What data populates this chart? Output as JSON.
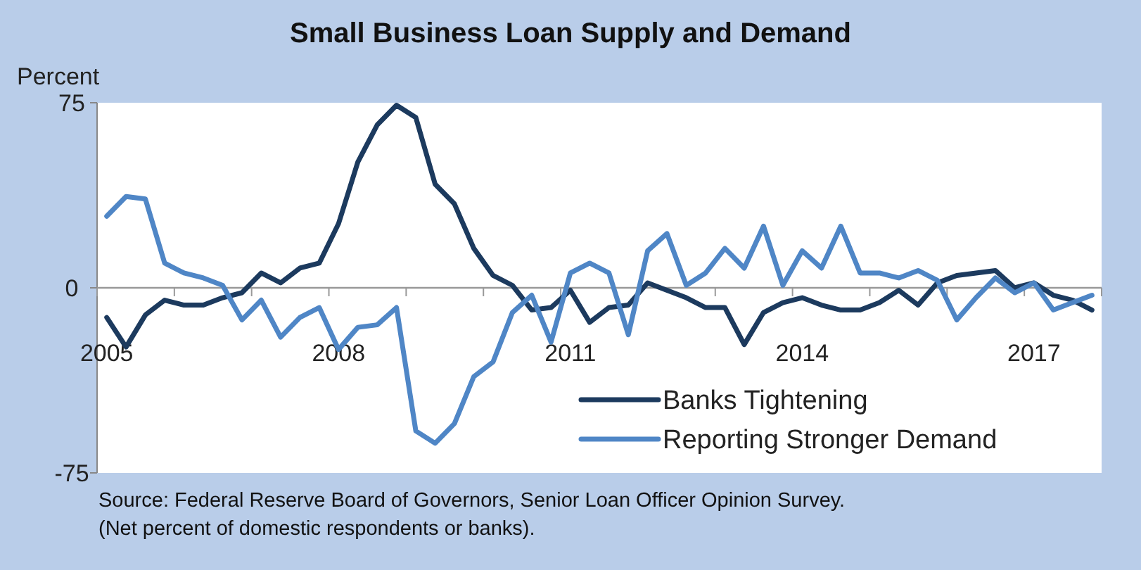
{
  "chart_data": {
    "type": "line",
    "title": "Small Business Loan Supply and Demand",
    "ylabel": "Percent",
    "x": [
      2005,
      2005.25,
      2005.5,
      2005.75,
      2006,
      2006.25,
      2006.5,
      2006.75,
      2007,
      2007.25,
      2007.5,
      2007.75,
      2008,
      2008.25,
      2008.5,
      2008.75,
      2009,
      2009.25,
      2009.5,
      2009.75,
      2010,
      2010.25,
      2010.5,
      2010.75,
      2011,
      2011.25,
      2011.5,
      2011.75,
      2012,
      2012.25,
      2012.5,
      2012.75,
      2013,
      2013.25,
      2013.5,
      2013.75,
      2014,
      2014.25,
      2014.5,
      2014.75,
      2015,
      2015.25,
      2015.5,
      2015.75,
      2016,
      2016.25,
      2016.5,
      2016.75,
      2017,
      2017.25,
      2017.5,
      2017.75
    ],
    "series": [
      {
        "name": "Banks Tightening",
        "color": "#1c3a5e",
        "values": [
          -12,
          -24,
          -11,
          -5,
          -7,
          -7,
          -4,
          -2,
          6,
          2,
          8,
          10,
          26,
          51,
          66,
          74,
          69,
          42,
          34,
          16,
          5,
          1,
          -9,
          -8,
          -1,
          -14,
          -8,
          -7,
          2,
          -1,
          -4,
          -8,
          -8,
          -23,
          -10,
          -6,
          -4,
          -7,
          -9,
          -9,
          -6,
          -1,
          -7,
          2,
          5,
          6,
          7,
          0,
          2,
          -3,
          -5,
          -9
        ]
      },
      {
        "name": "Reporting Stronger Demand",
        "color": "#4f86c6",
        "values": [
          29,
          37,
          36,
          10,
          6,
          4,
          1,
          -13,
          -5,
          -20,
          -12,
          -8,
          -25,
          -16,
          -15,
          -8,
          -58,
          -63,
          -55,
          -36,
          -30,
          -10,
          -3,
          -22,
          6,
          10,
          6,
          -19,
          15,
          22,
          1,
          6,
          16,
          8,
          25,
          1,
          15,
          8,
          25,
          6,
          6,
          4,
          7,
          3,
          -13,
          -4,
          4,
          -2,
          2,
          -9,
          -6,
          -3
        ]
      }
    ],
    "xlim": [
      2004.875,
      2017.875
    ],
    "xticks": [
      {
        "value": 2004.875,
        "label": null
      },
      {
        "value": 2005,
        "label": "2005"
      },
      {
        "value": 2005.875,
        "label": null
      },
      {
        "value": 2006.875,
        "label": null
      },
      {
        "value": 2007.875,
        "label": null
      },
      {
        "value": 2008,
        "label": "2008"
      },
      {
        "value": 2008.875,
        "label": null
      },
      {
        "value": 2009.875,
        "label": null
      },
      {
        "value": 2010.875,
        "label": null
      },
      {
        "value": 2011,
        "label": "2011"
      },
      {
        "value": 2011.875,
        "label": null
      },
      {
        "value": 2012.875,
        "label": null
      },
      {
        "value": 2013.875,
        "label": null
      },
      {
        "value": 2014,
        "label": "2014"
      },
      {
        "value": 2014.875,
        "label": null
      },
      {
        "value": 2015.875,
        "label": null
      },
      {
        "value": 2016.875,
        "label": null
      },
      {
        "value": 2017,
        "label": "2017"
      },
      {
        "value": 2017.875,
        "label": null
      }
    ],
    "ylim": [
      -75,
      75
    ],
    "yticks": [
      -75,
      0,
      75
    ],
    "grid": false,
    "legend": "bottom right",
    "marker": "none",
    "line_style": "solid",
    "annotations": [
      "Source: Federal Reserve Board of Governors, Senior Loan Officer Opinion Survey.",
      "(Net percent of domestic respondents or banks)."
    ]
  }
}
